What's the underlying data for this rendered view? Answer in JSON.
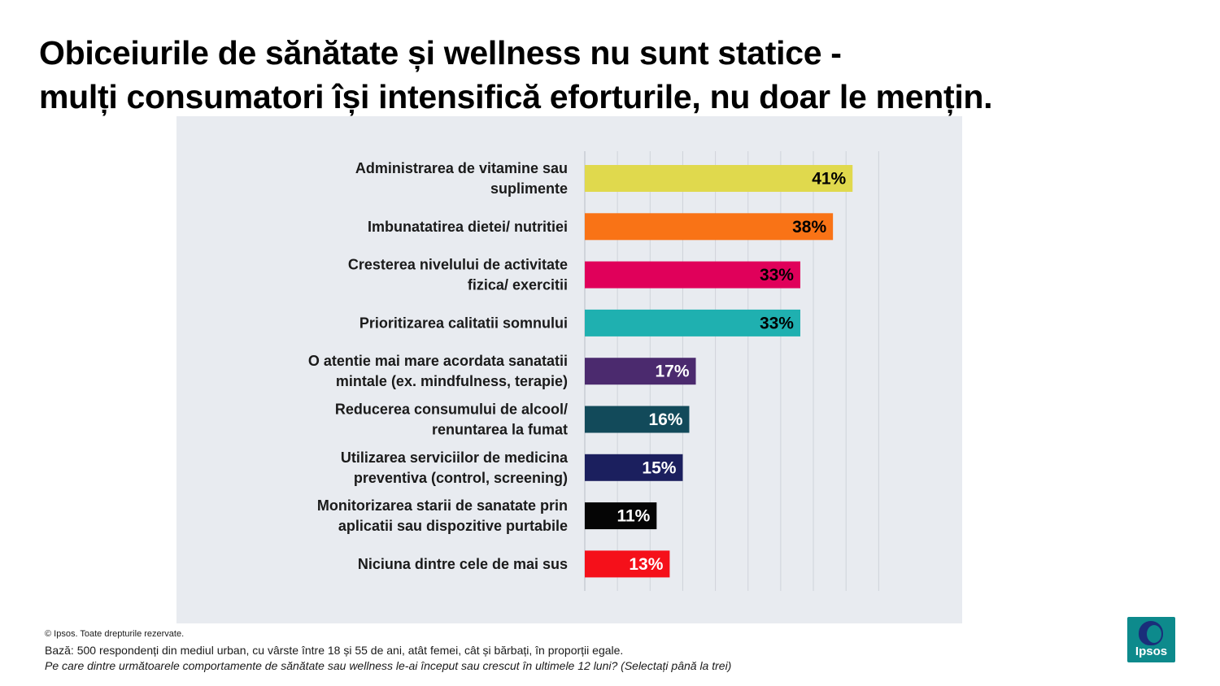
{
  "title": {
    "line1": "Obiceiurile de sănătate și wellness nu sunt statice -",
    "line2": "mulți consumatori își intensifică eforturile, nu doar le mențin."
  },
  "chart_data": {
    "type": "bar",
    "orientation": "horizontal",
    "categories": [
      [
        "Administrarea de vitamine sau",
        "suplimente"
      ],
      [
        "Imbunatatirea dietei/ nutritiei"
      ],
      [
        "Cresterea nivelului de activitate",
        "fizica/ exercitii"
      ],
      [
        "Prioritizarea calitatii somnului"
      ],
      [
        "O atentie mai mare acordata sanatatii",
        "mintale (ex. mindfulness, terapie)"
      ],
      [
        "Reducerea consumului de alcool/",
        "renuntarea la fumat"
      ],
      [
        "Utilizarea serviciilor de medicina",
        "preventiva (control, screening)"
      ],
      [
        "Monitorizarea starii de sanatate prin",
        "aplicatii sau dispozitive purtabile"
      ],
      [
        "Niciuna dintre cele de mai sus"
      ]
    ],
    "values": [
      41,
      38,
      33,
      33,
      17,
      16,
      15,
      11,
      13
    ],
    "value_labels": [
      "41%",
      "38%",
      "33%",
      "33%",
      "17%",
      "16%",
      "15%",
      "11%",
      "13%"
    ],
    "colors": [
      "#e0d94d",
      "#f97316",
      "#e0005a",
      "#1fb0b0",
      "#4b2a6e",
      "#124a5a",
      "#1b1f5e",
      "#050505",
      "#f5101a"
    ],
    "label_colors": [
      "#000000",
      "#000000",
      "#000000",
      "#000000",
      "#ffffff",
      "#ffffff",
      "#ffffff",
      "#ffffff",
      "#ffffff"
    ],
    "xlim": [
      0,
      45
    ],
    "gridline_step": 5,
    "grid": true
  },
  "footer": {
    "copyright": "© Ipsos. Toate drepturile rezervate.",
    "base": "Bază: 500 respondenți din mediul urban, cu vârste între 18 și 55 de ani, atât femei, cât și bărbați, în proporții egale.",
    "question": "Pe care dintre următoarele comportamente de sănătate sau wellness le-ai început sau crescut în ultimele 12 luni? (Selectați până la trei)"
  },
  "logo": {
    "text": "Ipsos"
  }
}
